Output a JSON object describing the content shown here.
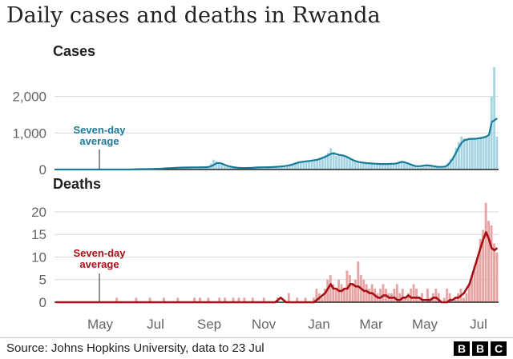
{
  "title": "Daily cases and deaths in Rwanda",
  "source": "Source: Johns Hopkins University, data to 23 Jul",
  "logo": [
    "B",
    "B",
    "C"
  ],
  "colors": {
    "cases_bar": "#a6d4e2",
    "cases_line": "#1a7a9a",
    "deaths_bar": "#e8a3a3",
    "deaths_line": "#a50f15",
    "axis": "#222222",
    "grid": "#d9d9d9",
    "tick_text": "#666666"
  },
  "chart_data": [
    {
      "type": "bar",
      "panel_title": "Cases",
      "x_ticks": [
        "May",
        "Jul",
        "Sep",
        "Nov",
        "Jan",
        "Mar",
        "May",
        "Jul"
      ],
      "ylim": [
        0,
        2800
      ],
      "yticks": [
        0,
        1000,
        2000
      ],
      "ytick_labels": [
        "0",
        "1,000",
        "2,000"
      ],
      "grid": true,
      "annotation": [
        "Seven-day",
        "average"
      ],
      "series": [
        {
          "type": "bar",
          "values": [
            0,
            0,
            0,
            0,
            0,
            0,
            0,
            0,
            0,
            0,
            0,
            0,
            0,
            0,
            0,
            0,
            0,
            0,
            0,
            0,
            0,
            0,
            0,
            0,
            0,
            0,
            0,
            0,
            5,
            10,
            10,
            10,
            10,
            15,
            15,
            20,
            20,
            25,
            25,
            30,
            35,
            40,
            40,
            45,
            50,
            60,
            60,
            60,
            60,
            70,
            70,
            60,
            60,
            60,
            70,
            80,
            60,
            160,
            270,
            230,
            190,
            150,
            110,
            90,
            70,
            60,
            55,
            50,
            45,
            40,
            40,
            45,
            50,
            55,
            60,
            65,
            60,
            60,
            60,
            70,
            70,
            80,
            80,
            90,
            90,
            110,
            130,
            170,
            200,
            230,
            210,
            230,
            240,
            250,
            250,
            280,
            260,
            330,
            360,
            400,
            460,
            580,
            490,
            380,
            400,
            410,
            380,
            330,
            300,
            250,
            210,
            200,
            190,
            180,
            170,
            170,
            160,
            160,
            160,
            150,
            150,
            150,
            160,
            160,
            150,
            170,
            220,
            240,
            220,
            170,
            140,
            100,
            90,
            90,
            100,
            130,
            130,
            120,
            110,
            80,
            70,
            70,
            70,
            80,
            180,
            280,
            380,
            600,
            750,
            900,
            850,
            800,
            850,
            850,
            820,
            840,
            900,
            900,
            930,
            960,
            2000,
            2800,
            900
          ]
        },
        {
          "type": "line",
          "values": [
            0,
            0,
            0,
            0,
            0,
            0,
            0,
            0,
            0,
            0,
            0,
            0,
            0,
            0,
            0,
            0,
            0,
            0,
            0,
            0,
            0,
            0,
            0,
            0,
            0,
            0,
            0,
            0,
            4,
            6,
            8,
            10,
            10,
            12,
            14,
            16,
            18,
            20,
            22,
            26,
            30,
            34,
            38,
            42,
            46,
            50,
            52,
            54,
            55,
            57,
            58,
            59,
            60,
            61,
            62,
            63,
            70,
            90,
            130,
            170,
            180,
            160,
            130,
            100,
            80,
            65,
            55,
            48,
            44,
            42,
            42,
            44,
            47,
            52,
            57,
            60,
            62,
            62,
            64,
            66,
            70,
            74,
            80,
            86,
            94,
            105,
            120,
            140,
            165,
            190,
            205,
            215,
            225,
            235,
            245,
            255,
            270,
            290,
            320,
            350,
            390,
            430,
            440,
            420,
            400,
            390,
            370,
            340,
            300,
            260,
            230,
            210,
            195,
            185,
            175,
            170,
            165,
            160,
            155,
            152,
            150,
            150,
            152,
            155,
            158,
            165,
            185,
            205,
            200,
            175,
            145,
            115,
            95,
            92,
            95,
            105,
            115,
            110,
            100,
            85,
            75,
            72,
            72,
            80,
            130,
            220,
            330,
            480,
            620,
            740,
            800,
            820,
            840,
            840,
            840,
            850,
            860,
            880,
            900,
            950,
            1300,
            1350,
            1400
          ]
        }
      ]
    },
    {
      "type": "bar",
      "panel_title": "Deaths",
      "x_ticks": [
        "May",
        "Jul",
        "Sep",
        "Nov",
        "Jan",
        "Mar",
        "May",
        "Jul"
      ],
      "ylim": [
        0,
        23
      ],
      "yticks": [
        0,
        5,
        10,
        15,
        20
      ],
      "ytick_labels": [
        "0",
        "5",
        "10",
        "15",
        "20"
      ],
      "grid": true,
      "annotation": [
        "Seven-day",
        "average"
      ],
      "series": [
        {
          "type": "bar",
          "values": [
            0,
            0,
            0,
            0,
            0,
            0,
            0,
            0,
            0,
            0,
            0,
            0,
            0,
            0,
            0,
            0,
            0,
            0,
            0,
            0,
            0,
            0,
            1,
            0,
            0,
            0,
            0,
            0,
            0,
            1,
            0,
            0,
            0,
            0,
            1,
            0,
            0,
            0,
            0,
            1,
            0,
            0,
            0,
            0,
            1,
            0,
            0,
            0,
            0,
            0,
            1,
            0,
            1,
            0,
            0,
            1,
            0,
            0,
            0,
            1,
            0,
            1,
            0,
            0,
            1,
            0,
            1,
            0,
            1,
            0,
            0,
            1,
            0,
            0,
            0,
            1,
            0,
            0,
            0,
            0,
            1,
            0,
            0,
            0,
            2,
            0,
            0,
            1,
            0,
            0,
            1,
            0,
            0,
            1,
            3,
            2,
            1,
            3,
            5,
            6,
            4,
            3,
            5,
            4,
            3,
            7,
            6,
            4,
            5,
            9,
            6,
            5,
            4,
            3,
            4,
            3,
            2,
            3,
            4,
            3,
            2,
            2,
            3,
            4,
            2,
            3,
            1,
            2,
            3,
            4,
            3,
            1,
            2,
            0,
            3,
            1,
            2,
            3,
            2,
            0,
            1,
            3,
            2,
            0,
            1,
            2,
            3,
            1,
            2,
            4,
            6,
            8,
            10,
            14,
            16,
            22,
            18,
            17,
            13,
            11
          ]
        },
        {
          "type": "line",
          "values": [
            0,
            0,
            0,
            0,
            0,
            0,
            0,
            0,
            0,
            0,
            0,
            0,
            0,
            0,
            0,
            0,
            0,
            0,
            0,
            0,
            0,
            0,
            0,
            0,
            0,
            0,
            0,
            0,
            0,
            0,
            0,
            0,
            0,
            0,
            0,
            0,
            0,
            0,
            0,
            0,
            0,
            0,
            0,
            0,
            0,
            0,
            0,
            0,
            0,
            0,
            0,
            0,
            0,
            0,
            0,
            0,
            0,
            0,
            0,
            0,
            0,
            0,
            0,
            0,
            0,
            0,
            0,
            0,
            0,
            0,
            0,
            0,
            0,
            0,
            0,
            0,
            0,
            0,
            0,
            0,
            0.5,
            1,
            0.5,
            0,
            0,
            0,
            0,
            0,
            0,
            0,
            0,
            0,
            0,
            0,
            0.5,
            1,
            1.5,
            2,
            3,
            4,
            3,
            3,
            2.5,
            2.5,
            3,
            3,
            4,
            4,
            3.5,
            3.5,
            3,
            2.5,
            2.5,
            2,
            2,
            1.5,
            1,
            1,
            1.5,
            1.5,
            1,
            1,
            1,
            0.5,
            0.5,
            1,
            1,
            1.5,
            1,
            1,
            1,
            1,
            0.5,
            0.5,
            0.5,
            0.5,
            1,
            1,
            0.5,
            0,
            0,
            0,
            0.5,
            0.5,
            1,
            1,
            1.5,
            2,
            3,
            4,
            6,
            8,
            10,
            12,
            14,
            15.5,
            14,
            12,
            11.5,
            12
          ]
        }
      ]
    }
  ]
}
